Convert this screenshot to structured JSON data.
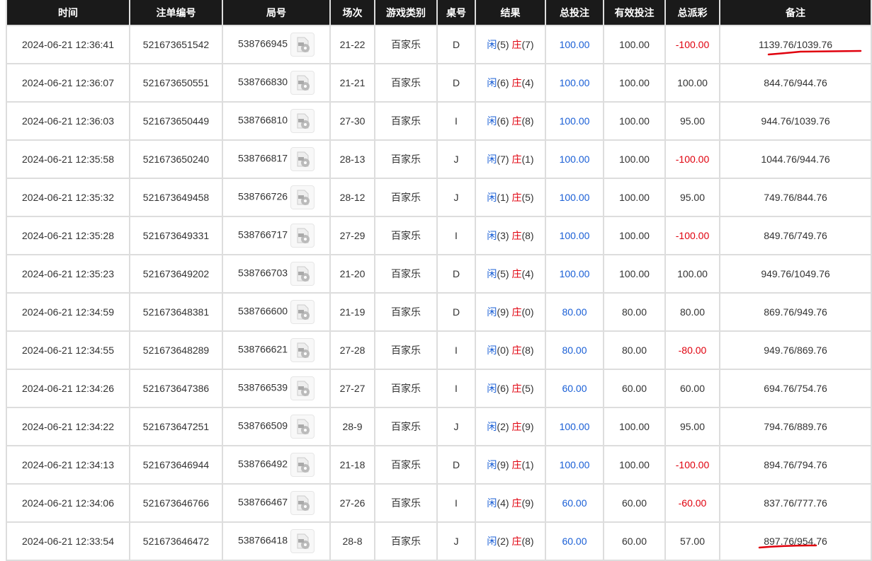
{
  "headers": [
    "时间",
    "注单编号",
    "局号",
    "场次",
    "游戏类别",
    "桌号",
    "结果",
    "总投注",
    "有效投注",
    "总派彩",
    "备注"
  ],
  "player_label": "闲",
  "banker_label": "庄",
  "rows": [
    [
      "2024-06-21 12:36:41",
      "521673651542",
      "538766945",
      "21-22",
      "百家乐",
      "D",
      "5",
      "7",
      "100.00",
      "100.00",
      "-100.00",
      "1139.76/1039.76"
    ],
    [
      "2024-06-21 12:36:07",
      "521673650551",
      "538766830",
      "21-21",
      "百家乐",
      "D",
      "6",
      "4",
      "100.00",
      "100.00",
      "100.00",
      "844.76/944.76"
    ],
    [
      "2024-06-21 12:36:03",
      "521673650449",
      "538766810",
      "27-30",
      "百家乐",
      "I",
      "6",
      "8",
      "100.00",
      "100.00",
      "95.00",
      "944.76/1039.76"
    ],
    [
      "2024-06-21 12:35:58",
      "521673650240",
      "538766817",
      "28-13",
      "百家乐",
      "J",
      "7",
      "1",
      "100.00",
      "100.00",
      "-100.00",
      "1044.76/944.76"
    ],
    [
      "2024-06-21 12:35:32",
      "521673649458",
      "538766726",
      "28-12",
      "百家乐",
      "J",
      "1",
      "5",
      "100.00",
      "100.00",
      "95.00",
      "749.76/844.76"
    ],
    [
      "2024-06-21 12:35:28",
      "521673649331",
      "538766717",
      "27-29",
      "百家乐",
      "I",
      "3",
      "8",
      "100.00",
      "100.00",
      "-100.00",
      "849.76/749.76"
    ],
    [
      "2024-06-21 12:35:23",
      "521673649202",
      "538766703",
      "21-20",
      "百家乐",
      "D",
      "5",
      "4",
      "100.00",
      "100.00",
      "100.00",
      "949.76/1049.76"
    ],
    [
      "2024-06-21 12:34:59",
      "521673648381",
      "538766600",
      "21-19",
      "百家乐",
      "D",
      "9",
      "0",
      "80.00",
      "80.00",
      "80.00",
      "869.76/949.76"
    ],
    [
      "2024-06-21 12:34:55",
      "521673648289",
      "538766621",
      "27-28",
      "百家乐",
      "I",
      "0",
      "8",
      "80.00",
      "80.00",
      "-80.00",
      "949.76/869.76"
    ],
    [
      "2024-06-21 12:34:26",
      "521673647386",
      "538766539",
      "27-27",
      "百家乐",
      "I",
      "6",
      "5",
      "60.00",
      "60.00",
      "60.00",
      "694.76/754.76"
    ],
    [
      "2024-06-21 12:34:22",
      "521673647251",
      "538766509",
      "28-9",
      "百家乐",
      "J",
      "2",
      "9",
      "100.00",
      "100.00",
      "95.00",
      "794.76/889.76"
    ],
    [
      "2024-06-21 12:34:13",
      "521673646944",
      "538766492",
      "21-18",
      "百家乐",
      "D",
      "9",
      "1",
      "100.00",
      "100.00",
      "-100.00",
      "894.76/794.76"
    ],
    [
      "2024-06-21 12:34:06",
      "521673646766",
      "538766467",
      "27-26",
      "百家乐",
      "I",
      "4",
      "9",
      "60.00",
      "60.00",
      "-60.00",
      "837.76/777.76"
    ],
    [
      "2024-06-21 12:33:54",
      "521673646472",
      "538766418",
      "28-8",
      "百家乐",
      "J",
      "2",
      "8",
      "60.00",
      "60.00",
      "57.00",
      "897.76/954.76"
    ]
  ],
  "colors": {
    "header_bg": "#1a1a1a",
    "blue": "#1a5fd6",
    "red": "#e0000d"
  }
}
